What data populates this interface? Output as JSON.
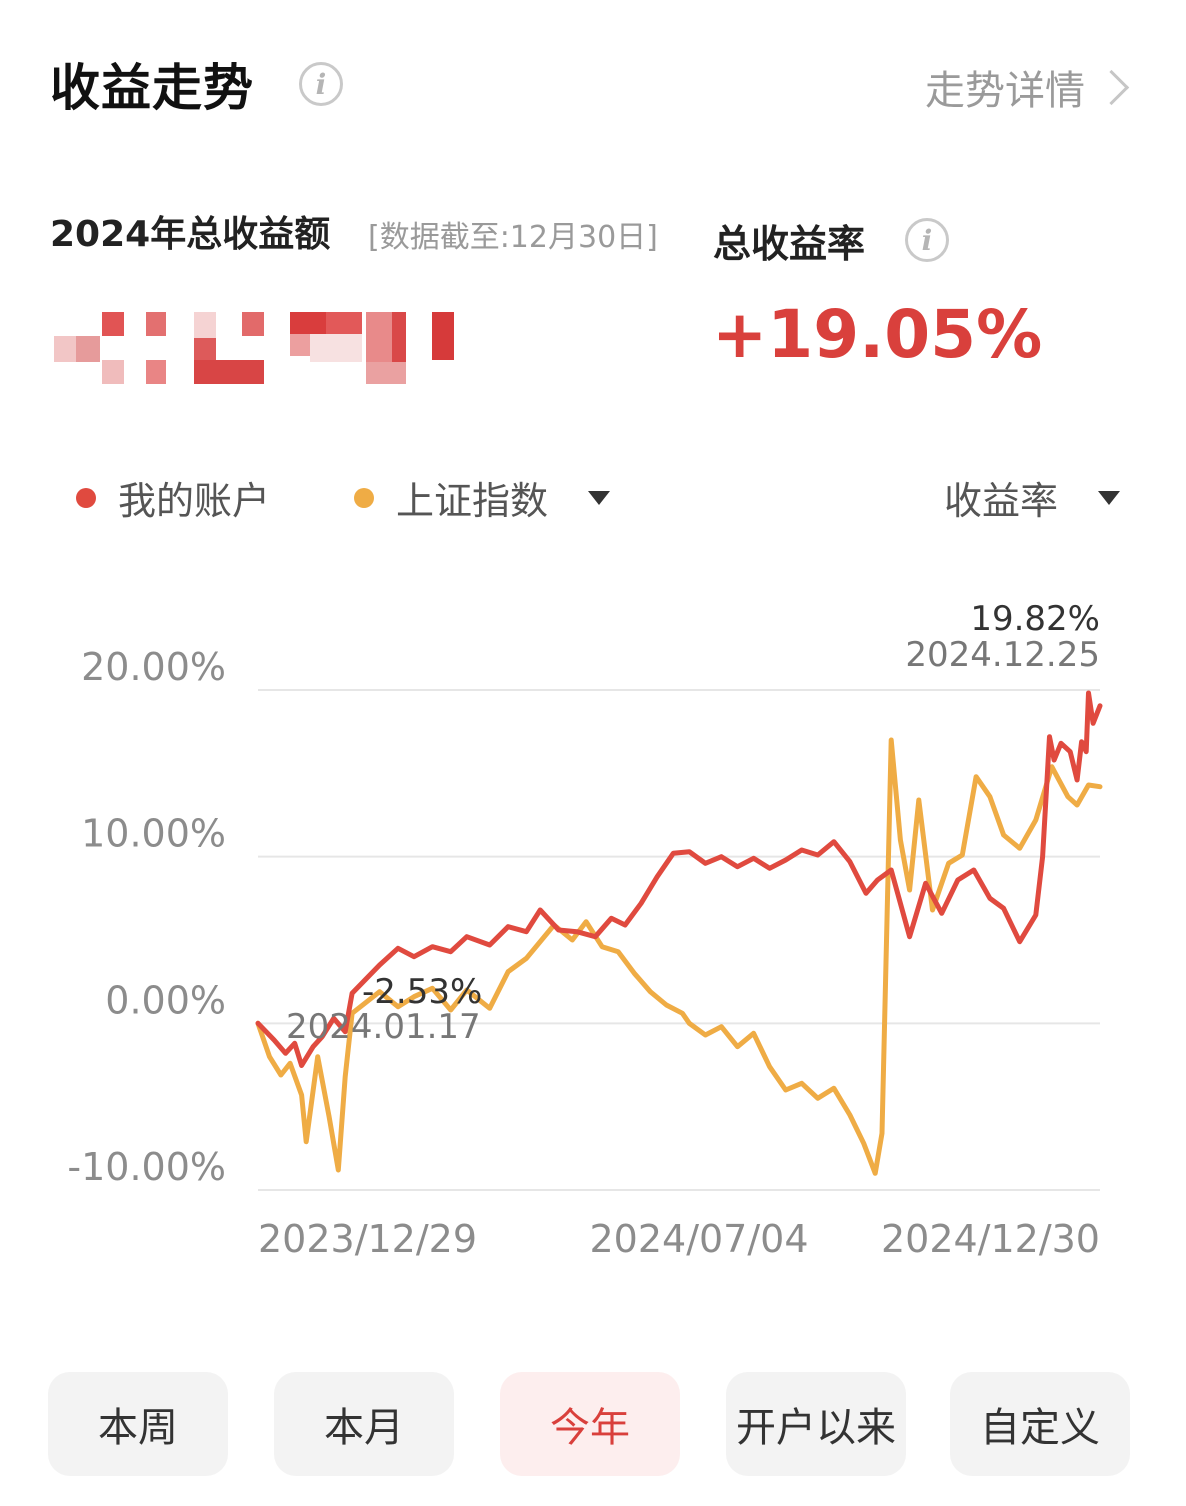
{
  "header": {
    "title": "收益走势",
    "detail_link": "走势详情"
  },
  "summary": {
    "total_label": "2024年总收益额",
    "data_note": "[数据截至:12月30日]",
    "rate_label": "总收益率",
    "rate_value": "+19.05%"
  },
  "legend": {
    "series1": "我的账户",
    "series2": "上证指数",
    "metric": "收益率"
  },
  "colors": {
    "accent": "#d9403c",
    "account_line": "#e04a3f",
    "index_line": "#efac45",
    "gridline": "#e6e6e6",
    "axis_text": "#8c8c8c"
  },
  "chart_data": {
    "type": "line",
    "x_ticks": [
      "2023/12/29",
      "2024/07/04",
      "2024/12/30"
    ],
    "y_ticks": [
      "20.00%",
      "10.00%",
      "0.00%",
      "-10.00%"
    ],
    "ylim": [
      -10,
      20
    ],
    "annotations": [
      {
        "value": "-2.53%",
        "date": "2024.01.17"
      },
      {
        "value": "19.82%",
        "date": "2024.12.25"
      }
    ],
    "x_range": [
      "2023-12-29",
      "2024-12-30"
    ],
    "series": [
      {
        "name": "我的账户",
        "color": "#e04a3f",
        "points": [
          [
            "2023-12-29",
            0.0
          ],
          [
            "2024-01-05",
            -1.0
          ],
          [
            "2024-01-10",
            -1.8
          ],
          [
            "2024-01-14",
            -1.2
          ],
          [
            "2024-01-17",
            -2.53
          ],
          [
            "2024-01-22",
            -1.4
          ],
          [
            "2024-01-26",
            -0.8
          ],
          [
            "2024-01-31",
            0.3
          ],
          [
            "2024-02-05",
            -0.5
          ],
          [
            "2024-02-08",
            1.8
          ],
          [
            "2024-02-20",
            3.5
          ],
          [
            "2024-02-28",
            4.5
          ],
          [
            "2024-03-06",
            4.0
          ],
          [
            "2024-03-14",
            4.6
          ],
          [
            "2024-03-22",
            4.3
          ],
          [
            "2024-03-29",
            5.2
          ],
          [
            "2024-04-08",
            4.7
          ],
          [
            "2024-04-16",
            5.8
          ],
          [
            "2024-04-24",
            5.5
          ],
          [
            "2024-04-30",
            6.8
          ],
          [
            "2024-05-08",
            5.6
          ],
          [
            "2024-05-16",
            5.5
          ],
          [
            "2024-05-24",
            5.2
          ],
          [
            "2024-05-31",
            6.3
          ],
          [
            "2024-06-06",
            5.9
          ],
          [
            "2024-06-13",
            7.2
          ],
          [
            "2024-06-20",
            8.8
          ],
          [
            "2024-06-27",
            10.2
          ],
          [
            "2024-07-04",
            10.3
          ],
          [
            "2024-07-11",
            9.6
          ],
          [
            "2024-07-18",
            10.0
          ],
          [
            "2024-07-25",
            9.4
          ],
          [
            "2024-08-01",
            9.9
          ],
          [
            "2024-08-08",
            9.3
          ],
          [
            "2024-08-15",
            9.8
          ],
          [
            "2024-08-22",
            10.4
          ],
          [
            "2024-08-29",
            10.1
          ],
          [
            "2024-09-05",
            10.9
          ],
          [
            "2024-09-12",
            9.7
          ],
          [
            "2024-09-19",
            7.8
          ],
          [
            "2024-09-24",
            8.6
          ],
          [
            "2024-09-30",
            9.2
          ],
          [
            "2024-10-08",
            5.2
          ],
          [
            "2024-10-15",
            8.4
          ],
          [
            "2024-10-22",
            6.6
          ],
          [
            "2024-10-29",
            8.6
          ],
          [
            "2024-11-05",
            9.2
          ],
          [
            "2024-11-12",
            7.5
          ],
          [
            "2024-11-18",
            6.9
          ],
          [
            "2024-11-25",
            4.9
          ],
          [
            "2024-12-02",
            6.5
          ],
          [
            "2024-12-05",
            10.0
          ],
          [
            "2024-12-08",
            17.2
          ],
          [
            "2024-12-10",
            15.8
          ],
          [
            "2024-12-13",
            16.8
          ],
          [
            "2024-12-17",
            16.3
          ],
          [
            "2024-12-20",
            14.6
          ],
          [
            "2024-12-22",
            16.9
          ],
          [
            "2024-12-24",
            16.3
          ],
          [
            "2024-12-25",
            19.82
          ],
          [
            "2024-12-27",
            18.0
          ],
          [
            "2024-12-30",
            19.05
          ]
        ]
      },
      {
        "name": "上证指数",
        "color": "#efac45",
        "points": [
          [
            "2023-12-29",
            0.0
          ],
          [
            "2024-01-03",
            -2.0
          ],
          [
            "2024-01-08",
            -3.1
          ],
          [
            "2024-01-12",
            -2.4
          ],
          [
            "2024-01-17",
            -4.3
          ],
          [
            "2024-01-19",
            -7.1
          ],
          [
            "2024-01-24",
            -2.0
          ],
          [
            "2024-01-29",
            -5.6
          ],
          [
            "2024-02-02",
            -8.8
          ],
          [
            "2024-02-05",
            -3.2
          ],
          [
            "2024-02-08",
            0.6
          ],
          [
            "2024-02-20",
            1.9
          ],
          [
            "2024-02-28",
            1.0
          ],
          [
            "2024-03-06",
            1.6
          ],
          [
            "2024-03-14",
            2.1
          ],
          [
            "2024-03-22",
            0.8
          ],
          [
            "2024-03-29",
            2.0
          ],
          [
            "2024-04-08",
            0.9
          ],
          [
            "2024-04-16",
            3.1
          ],
          [
            "2024-04-24",
            3.9
          ],
          [
            "2024-05-06",
            5.9
          ],
          [
            "2024-05-14",
            5.0
          ],
          [
            "2024-05-20",
            6.1
          ],
          [
            "2024-05-27",
            4.6
          ],
          [
            "2024-06-03",
            4.3
          ],
          [
            "2024-06-10",
            3.0
          ],
          [
            "2024-06-17",
            1.9
          ],
          [
            "2024-06-24",
            1.1
          ],
          [
            "2024-07-01",
            0.6
          ],
          [
            "2024-07-04",
            0.0
          ],
          [
            "2024-07-11",
            -0.7
          ],
          [
            "2024-07-18",
            -0.2
          ],
          [
            "2024-07-25",
            -1.4
          ],
          [
            "2024-08-01",
            -0.6
          ],
          [
            "2024-08-08",
            -2.6
          ],
          [
            "2024-08-15",
            -4.0
          ],
          [
            "2024-08-22",
            -3.6
          ],
          [
            "2024-08-29",
            -4.5
          ],
          [
            "2024-09-05",
            -3.9
          ],
          [
            "2024-09-12",
            -5.5
          ],
          [
            "2024-09-18",
            -7.2
          ],
          [
            "2024-09-23",
            -9.0
          ],
          [
            "2024-09-26",
            -6.6
          ],
          [
            "2024-09-30",
            17.0
          ],
          [
            "2024-10-04",
            11.0
          ],
          [
            "2024-10-08",
            8.0
          ],
          [
            "2024-10-12",
            13.4
          ],
          [
            "2024-10-18",
            6.8
          ],
          [
            "2024-10-25",
            9.6
          ],
          [
            "2024-10-31",
            10.1
          ],
          [
            "2024-11-06",
            14.8
          ],
          [
            "2024-11-12",
            13.6
          ],
          [
            "2024-11-18",
            11.3
          ],
          [
            "2024-11-25",
            10.5
          ],
          [
            "2024-12-02",
            12.2
          ],
          [
            "2024-12-09",
            15.4
          ],
          [
            "2024-12-16",
            13.6
          ],
          [
            "2024-12-20",
            13.1
          ],
          [
            "2024-12-25",
            14.3
          ],
          [
            "2024-12-30",
            14.2
          ]
        ]
      }
    ]
  },
  "buttons": [
    "本周",
    "本月",
    "今年",
    "开户以来",
    "自定义"
  ],
  "active_button": "今年"
}
